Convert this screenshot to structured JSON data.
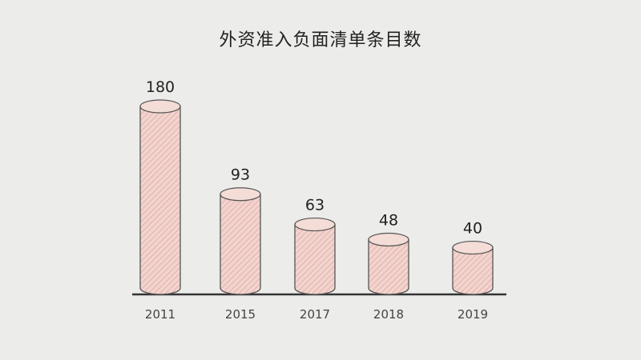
{
  "chart_data": {
    "type": "bar",
    "title": "外资准入负面清单条目数",
    "categories": [
      "2011",
      "2015",
      "2017",
      "2018",
      "2019"
    ],
    "values": [
      180,
      93,
      63,
      48,
      40
    ],
    "data_labels": [
      "180",
      "93",
      "63",
      "48",
      "40"
    ],
    "xlabel": "",
    "ylabel": "",
    "ylim": [
      0,
      180
    ],
    "grid": false,
    "legend": "none",
    "bar_style": "hand-drawn cylinder with diagonal hatching",
    "colors": {
      "bar_fill": "#f2cfc8",
      "hatch": "#d9928a",
      "outline": "#555555",
      "axis": "#333333"
    }
  }
}
